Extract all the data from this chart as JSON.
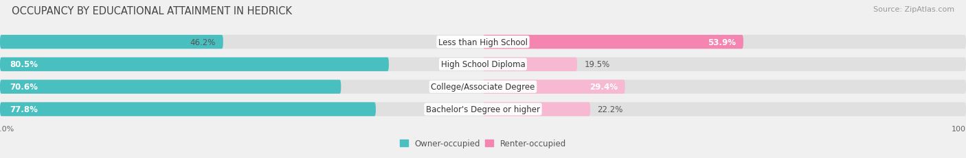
{
  "title": "OCCUPANCY BY EDUCATIONAL ATTAINMENT IN HEDRICK",
  "source": "Source: ZipAtlas.com",
  "categories": [
    "Less than High School",
    "High School Diploma",
    "College/Associate Degree",
    "Bachelor's Degree or higher"
  ],
  "owner_pct": [
    46.2,
    80.5,
    70.6,
    77.8
  ],
  "renter_pct": [
    53.9,
    19.5,
    29.4,
    22.2
  ],
  "owner_color": "#4abfbf",
  "renter_color": "#f485b0",
  "renter_color_light": "#f7b8d2",
  "bar_height": 0.62,
  "background_color": "#f0f0f0",
  "bar_bg_color": "#e0e0e0",
  "title_fontsize": 10.5,
  "label_fontsize": 8.5,
  "source_fontsize": 8,
  "axis_label_fontsize": 8
}
